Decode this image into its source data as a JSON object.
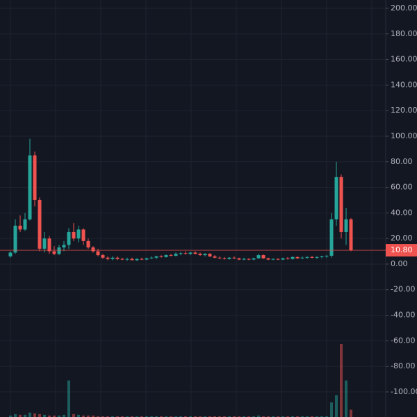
{
  "chart_data": {
    "type": "candlestick",
    "ylim": [
      -119.6,
      206.5
    ],
    "yticks": [
      {
        "value": 200,
        "label": "200.00"
      },
      {
        "value": 180,
        "label": "180.00"
      },
      {
        "value": 160,
        "label": "160.00"
      },
      {
        "value": 140,
        "label": "140.00"
      },
      {
        "value": 120,
        "label": "120.00"
      },
      {
        "value": 100,
        "label": "100.00"
      },
      {
        "value": 80,
        "label": "80.00"
      },
      {
        "value": 60,
        "label": "60.00"
      },
      {
        "value": 40,
        "label": "40.00"
      },
      {
        "value": 20,
        "label": "20.00"
      },
      {
        "value": 0,
        "label": "0.00"
      },
      {
        "value": -20,
        "label": "-20.00"
      },
      {
        "value": -40,
        "label": "-40.00"
      },
      {
        "value": -60,
        "label": "-60.00"
      },
      {
        "value": -80,
        "label": "-80.00"
      },
      {
        "value": -100,
        "label": "-100.00"
      }
    ],
    "grid": true,
    "up_color": "#26a69a",
    "down_color": "#ef5350",
    "last_price": {
      "value": 10.8,
      "label": "10.80"
    },
    "ohlc": [
      [
        6,
        10,
        5,
        9
      ],
      [
        9,
        35,
        8,
        30
      ],
      [
        30,
        38,
        25,
        27
      ],
      [
        27,
        40,
        26,
        35
      ],
      [
        35,
        98,
        34,
        85
      ],
      [
        85,
        88,
        45,
        50
      ],
      [
        50,
        52,
        10,
        12
      ],
      [
        12,
        25,
        9,
        20
      ],
      [
        20,
        22,
        8,
        10
      ],
      [
        10,
        14,
        7,
        8
      ],
      [
        8,
        15,
        7,
        13
      ],
      [
        13,
        18,
        10,
        15
      ],
      [
        15,
        28,
        12,
        25
      ],
      [
        25,
        32,
        18,
        20
      ],
      [
        20,
        30,
        17,
        27
      ],
      [
        27,
        28,
        15,
        18
      ],
      [
        18,
        20,
        12,
        13
      ],
      [
        13,
        14,
        9,
        10
      ],
      [
        10,
        12,
        6,
        7
      ],
      [
        7,
        8,
        4,
        5
      ],
      [
        5,
        6,
        3,
        4
      ],
      [
        4,
        6,
        3,
        5
      ],
      [
        5,
        6,
        3,
        4
      ],
      [
        4,
        5,
        3,
        3.5
      ],
      [
        3.5,
        5,
        2.5,
        4
      ],
      [
        4,
        5,
        3,
        3
      ],
      [
        3,
        4.5,
        2.5,
        4
      ],
      [
        4,
        5,
        3,
        3.5
      ],
      [
        3.5,
        5,
        3,
        4.5
      ],
      [
        4.5,
        6,
        4,
        5
      ],
      [
        5,
        6.5,
        4,
        6
      ],
      [
        6,
        7,
        5,
        5.5
      ],
      [
        5.5,
        7.5,
        5,
        7
      ],
      [
        7,
        8,
        6,
        6.5
      ],
      [
        6.5,
        9,
        6,
        8
      ],
      [
        8,
        9.5,
        7,
        8.5
      ],
      [
        8.5,
        10,
        7.5,
        8
      ],
      [
        8,
        9.5,
        7,
        9
      ],
      [
        9,
        10,
        7.5,
        8
      ],
      [
        8,
        9,
        6.5,
        7
      ],
      [
        7,
        8.5,
        6,
        8
      ],
      [
        8,
        8.5,
        5.5,
        6
      ],
      [
        6,
        7,
        4.5,
        5
      ],
      [
        5,
        6,
        4,
        4.5
      ],
      [
        4.5,
        5.5,
        3.5,
        4
      ],
      [
        4,
        5.5,
        3.5,
        5
      ],
      [
        5,
        6,
        4,
        4.5
      ],
      [
        4.5,
        5,
        3,
        3.5
      ],
      [
        3.5,
        5,
        3,
        4
      ],
      [
        4,
        4.5,
        3,
        3.5
      ],
      [
        3.5,
        5,
        3,
        4.5
      ],
      [
        4.5,
        8,
        4,
        7
      ],
      [
        7,
        7.5,
        4,
        4.5
      ],
      [
        4.5,
        5,
        3,
        3.5
      ],
      [
        3.5,
        4.5,
        3,
        4
      ],
      [
        4,
        4.5,
        3,
        3.5
      ],
      [
        3.5,
        5,
        3,
        4.5
      ],
      [
        4.5,
        5.5,
        3.5,
        4
      ],
      [
        4,
        6,
        3.5,
        5.5
      ],
      [
        5.5,
        6,
        4,
        4.5
      ],
      [
        4.5,
        6,
        4,
        5
      ],
      [
        5,
        6,
        4,
        5.5
      ],
      [
        5.5,
        6.5,
        4.5,
        5
      ],
      [
        5,
        6,
        4,
        5.5
      ],
      [
        5.5,
        6.5,
        4.5,
        6
      ],
      [
        6,
        7,
        5,
        6.5
      ],
      [
        6.5,
        40,
        5,
        35
      ],
      [
        35,
        80,
        30,
        68
      ],
      [
        68,
        70,
        20,
        25
      ],
      [
        25,
        44,
        15,
        35
      ],
      [
        35,
        36,
        10,
        10.8
      ]
    ],
    "volume": [
      2,
      4,
      3,
      3,
      6,
      5,
      4,
      3,
      2,
      2,
      2,
      3,
      50,
      4,
      3,
      2,
      2,
      2,
      1,
      1,
      1,
      1,
      1,
      1,
      1,
      1,
      1,
      1,
      1,
      1,
      1,
      1,
      1,
      1,
      1,
      1,
      1,
      1,
      1,
      1,
      1,
      1,
      1,
      1,
      1,
      1,
      1,
      1,
      1,
      1,
      1,
      2,
      1,
      1,
      1,
      1,
      1,
      1,
      1,
      1,
      1,
      1,
      1,
      1,
      1,
      1,
      20,
      30,
      100,
      50,
      10
    ]
  }
}
